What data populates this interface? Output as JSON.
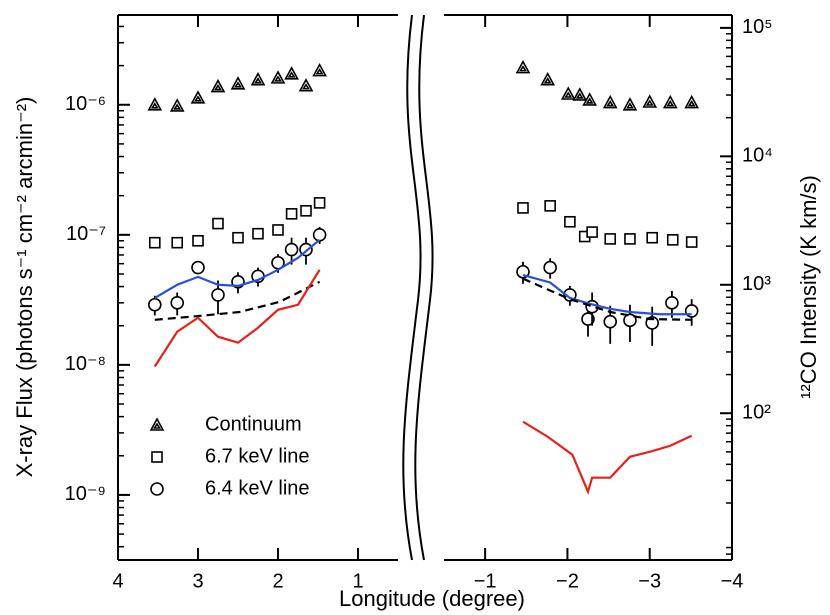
{
  "chart_data": {
    "type": "scatter",
    "xlabel": "Longitude (degree)",
    "ylabel": "X-ray Flux (photons s⁻¹ cm⁻² arcmin⁻²)",
    "y2label": "¹²CO Intensity (K km/s)",
    "ylog": true,
    "y2log": true,
    "ylim": [
      3.16e-10,
      4.9e-06
    ],
    "yticks": [
      {
        "value": 1e-09,
        "label": "10⁻⁹"
      },
      {
        "value": 1e-08,
        "label": "10⁻⁸"
      },
      {
        "value": 1e-07,
        "label": "10⁻⁷"
      },
      {
        "value": 1e-06,
        "label": "10⁻⁶"
      }
    ],
    "y2lim": [
      7.2,
      126000
    ],
    "y2ticks": [
      {
        "value": 100,
        "label": "10²"
      },
      {
        "value": 1000,
        "label": "10³"
      },
      {
        "value": 10000,
        "label": "10⁴"
      },
      {
        "value": 100000,
        "label": "10⁵"
      }
    ],
    "legend": "lower left",
    "panels": [
      {
        "xlim": [
          4,
          0.5
        ],
        "xticks": [
          4,
          3,
          2,
          1
        ],
        "series": [
          {
            "name": "Continuum",
            "marker": "triangle",
            "color": "#000000",
            "x": [
              3.54,
              3.26,
              3.0,
              2.75,
              2.5,
              2.25,
              2.0,
              1.83,
              1.65,
              1.48
            ],
            "values": [
              1e-06,
              9.8e-07,
              1.13e-06,
              1.38e-06,
              1.45e-06,
              1.56e-06,
              1.61e-06,
              1.73e-06,
              1.4e-06,
              1.83e-06
            ]
          },
          {
            "name": "6.7 keV line",
            "marker": "square",
            "color": "#000000",
            "x": [
              3.54,
              3.26,
              3.0,
              2.75,
              2.5,
              2.25,
              2.0,
              1.83,
              1.65,
              1.48
            ],
            "values": [
              8.7e-08,
              8.7e-08,
              9e-08,
              1.22e-07,
              9.5e-08,
              1.02e-07,
              1.09e-07,
              1.45e-07,
              1.53e-07,
              1.76e-07
            ]
          },
          {
            "name": "6.4 keV line",
            "marker": "circle",
            "color": "#000000",
            "x": [
              3.54,
              3.26,
              3.0,
              2.75,
              2.5,
              2.25,
              2.0,
              1.83,
              1.65,
              1.48
            ],
            "values": [
              2.9e-08,
              3e-08,
              5.6e-08,
              3.45e-08,
              4.35e-08,
              4.8e-08,
              6.1e-08,
              7.7e-08,
              7.7e-08,
              1e-07
            ],
            "errors": [
              5e-09,
              6e-09,
              6e-09,
              1e-08,
              8e-09,
              8e-09,
              1e-08,
              1.8e-08,
              1.8e-08,
              1.5e-08
            ]
          },
          {
            "style": "solid",
            "color": "#2b4fd8",
            "x": [
              3.54,
              3.26,
              3.0,
              2.75,
              2.5,
              2.25,
              2.0,
              1.75,
              1.48
            ],
            "values": [
              3.27e-08,
              4.13e-08,
              4.75e-08,
              4.13e-08,
              4.05e-08,
              4.5e-08,
              5.38e-08,
              6.65e-08,
              9.15e-08
            ]
          },
          {
            "style": "dashed",
            "color": "#000000",
            "x": [
              3.54,
              2.98,
              2.48,
              1.98,
              1.48
            ],
            "values": [
              2.22e-08,
              2.38e-08,
              2.55e-08,
              3.05e-08,
              4.35e-08
            ]
          },
          {
            "style": "solid",
            "color": "#e8201a",
            "axis": "y2",
            "x": [
              3.54,
              3.26,
              3.0,
              2.75,
              2.5,
              2.25,
              2.0,
              1.75,
              1.48
            ],
            "values": [
              231,
              431,
              554,
              394,
              354,
              463,
              639,
              699,
              1308
            ]
          }
        ]
      },
      {
        "xlim": [
          -0.5,
          -4
        ],
        "xticks": [
          {
            "value": -1,
            "label": "−1"
          },
          {
            "value": -2,
            "label": "−2"
          },
          {
            "value": -3,
            "label": "−3"
          },
          {
            "value": -4,
            "label": "−4"
          }
        ],
        "series": [
          {
            "marker": "triangle",
            "color": "#000000",
            "x": [
              -1.46,
              -1.76,
              -2.01,
              -2.15,
              -2.27,
              -2.52,
              -2.76,
              -3.0,
              -3.25,
              -3.51
            ],
            "values": [
              1.93e-06,
              1.56e-06,
              1.21e-06,
              1.19e-06,
              1.09e-06,
              1.04e-06,
              1e-06,
              1.05e-06,
              1.04e-06,
              1.04e-06
            ]
          },
          {
            "marker": "square",
            "color": "#000000",
            "x": [
              -1.46,
              -1.79,
              -2.03,
              -2.21,
              -2.3,
              -2.52,
              -2.76,
              -3.03,
              -3.28,
              -3.51
            ],
            "values": [
              1.61e-07,
              1.67e-07,
              1.26e-07,
              9.7e-08,
              1.05e-07,
              9.3e-08,
              9.3e-08,
              9.5e-08,
              9.15e-08,
              8.8e-08
            ]
          },
          {
            "marker": "circle",
            "color": "#000000",
            "x": [
              -1.46,
              -1.79,
              -2.03,
              -2.25,
              -2.3,
              -2.52,
              -2.76,
              -3.03,
              -3.27,
              -3.51
            ],
            "values": [
              5.2e-08,
              5.6e-08,
              3.45e-08,
              2.25e-08,
              2.8e-08,
              2.15e-08,
              2.2e-08,
              2.1e-08,
              3e-08,
              2.6e-08
            ],
            "errors": [
              1e-08,
              1e-08,
              6e-09,
              6e-09,
              8e-09,
              7e-09,
              7e-09,
              7e-09,
              7e-09,
              6e-09
            ]
          },
          {
            "style": "solid",
            "color": "#2b4fd8",
            "x": [
              -1.46,
              -1.79,
              -2.03,
              -2.27,
              -2.52,
              -2.76,
              -3.12,
              -3.51
            ],
            "values": [
              4.9e-08,
              4.3e-08,
              3.27e-08,
              2.95e-08,
              2.7e-08,
              2.55e-08,
              2.45e-08,
              2.45e-08
            ]
          },
          {
            "style": "dashed",
            "color": "#000000",
            "x": [
              -1.46,
              -2.03,
              -2.52,
              -3.0,
              -3.51
            ],
            "values": [
              4.6e-08,
              3.2e-08,
              2.55e-08,
              2.25e-08,
              2.22e-08
            ]
          },
          {
            "style": "solid",
            "color": "#e8201a",
            "axis": "y2",
            "x": [
              -1.46,
              -1.76,
              -2.06,
              -2.25,
              -2.3,
              -2.52,
              -2.76,
              -3.0,
              -3.25,
              -3.51
            ],
            "values": [
              85.9,
              65.6,
              47.5,
              24.5,
              31.5,
              31.5,
              45.8,
              50.1,
              55.8,
              66.8
            ]
          }
        ]
      }
    ]
  }
}
